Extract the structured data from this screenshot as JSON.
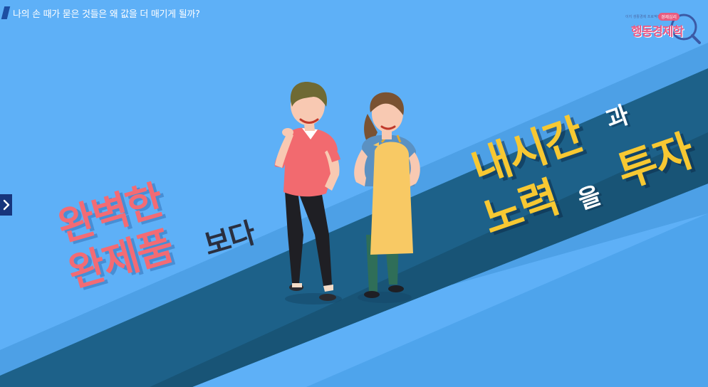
{
  "header": {
    "title": "나의 손 때가 묻은 것들은 왜 값을 더 매기게 될까?"
  },
  "logo": {
    "subtitle": "이지 생활경제 프로젝트",
    "badge": "경제심리",
    "name": "행동경제학"
  },
  "slogan_left": {
    "line1": "완벽한",
    "line2": "완제품",
    "suffix": "보다"
  },
  "slogan_right": {
    "line1_main": "내시간",
    "line1_small": "과",
    "line2_main": "노력",
    "line2_small": "을",
    "line2_end": "투자"
  },
  "navigation": {
    "next_icon": "chevron-right-icon"
  },
  "colors": {
    "sky": "#5eb0f7",
    "stripe": "#1d6189",
    "pink_text": "#f36b74",
    "yellow_text": "#f7c832",
    "nav_button": "#17357c"
  }
}
